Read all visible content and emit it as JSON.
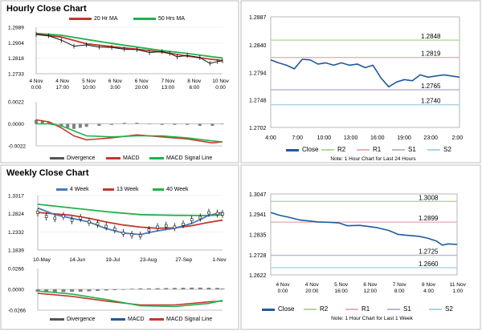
{
  "colors": {
    "green": "#22b14c",
    "red": "#c0392b",
    "black": "#111111",
    "blue": "#4a7ab8",
    "close_line": "#1f5a9a",
    "gray": "#808080",
    "r2": "#b5d69c",
    "r1": "#e6b3b3",
    "s1": "#c3b5d6",
    "s2": "#a9d4e6"
  },
  "sections": {
    "hourly_title": "Hourly Close Chart",
    "weekly_title": "Weekly Close Chart"
  },
  "chart_data": [
    {
      "id": "hourly_price",
      "type": "line",
      "legend": [
        "20 Hr MA",
        "50 Hrs MA"
      ],
      "y_ticks": [
        "1.2989",
        "1.2904",
        "1.2818",
        "1.2733"
      ],
      "ylim": [
        1.2733,
        1.2989
      ],
      "x_ticks": [
        [
          "4 Nov",
          "0:00"
        ],
        [
          "4 Nov",
          "17:00"
        ],
        [
          "5 Nov",
          "10:00"
        ],
        [
          "6 Nov",
          "3:00"
        ],
        [
          "6 Nov",
          "20:00"
        ],
        [
          "7 Nov",
          "13:00"
        ],
        [
          "8 Nov",
          "6:00"
        ],
        [
          "10 Nov",
          "0:00"
        ]
      ],
      "series": [
        {
          "name": "50 Hrs MA",
          "color": "green",
          "x": [
            0,
            1,
            2,
            3,
            4,
            5,
            6,
            7,
            7.4
          ],
          "y": [
            1.2955,
            1.2945,
            1.2922,
            1.29,
            1.288,
            1.286,
            1.2845,
            1.2826,
            1.282
          ]
        },
        {
          "name": "20 Hr MA",
          "color": "red",
          "x": [
            0,
            1,
            2,
            3,
            4,
            5,
            6,
            7,
            7.4
          ],
          "y": [
            1.295,
            1.2935,
            1.2898,
            1.2882,
            1.2868,
            1.2852,
            1.283,
            1.2812,
            1.2806
          ]
        },
        {
          "name": "Price",
          "color": "black",
          "x": [
            0,
            0.5,
            1,
            1.5,
            2,
            2.5,
            3,
            3.5,
            4,
            4.5,
            5,
            5.3,
            5.6,
            6,
            6.5,
            6.9,
            7.2,
            7.4
          ],
          "y": [
            1.295,
            1.2942,
            1.2918,
            1.2885,
            1.2892,
            1.288,
            1.2878,
            1.2868,
            1.2866,
            1.285,
            1.2855,
            1.2845,
            1.2826,
            1.2834,
            1.2822,
            1.279,
            1.28,
            1.2804
          ]
        }
      ]
    },
    {
      "id": "hourly_macd",
      "type": "line",
      "legend": [
        "Divergence",
        "MACD",
        "MACD Signal Line"
      ],
      "y_ticks": [
        "0.0022",
        "0.0000",
        "-0.0022"
      ],
      "ylim": [
        -0.0022,
        0.0022
      ],
      "series": [
        {
          "name": "MACD",
          "color": "red",
          "x": [
            0,
            0.5,
            1,
            1.5,
            2,
            3,
            4,
            5,
            6,
            7,
            7.4
          ],
          "y": [
            0.0004,
            0.0002,
            -0.0004,
            -0.0012,
            -0.0016,
            -0.0014,
            -0.0011,
            -0.0013,
            -0.0015,
            -0.0019,
            -0.0018
          ]
        },
        {
          "name": "MACD Signal Line",
          "color": "green",
          "x": [
            0,
            0.5,
            1,
            1.5,
            2,
            3,
            4,
            5,
            6,
            7,
            7.4
          ],
          "y": [
            0.0,
            0.0,
            -0.0002,
            -0.0007,
            -0.0012,
            -0.0013,
            -0.0012,
            -0.0012,
            -0.0014,
            -0.0017,
            -0.0018
          ]
        }
      ],
      "divergence": {
        "x": [
          0,
          0.25,
          0.5,
          0.75,
          1,
          1.25,
          1.5,
          1.75,
          2,
          2.5,
          3,
          3.5,
          4,
          4.5,
          5,
          5.5,
          6,
          6.5,
          7,
          7.4
        ],
        "y": [
          0.0004,
          0.0003,
          0.0002,
          0.0,
          -0.0002,
          -0.0004,
          -0.0005,
          -0.0004,
          -0.0003,
          -0.0002,
          -0.0001,
          0.0001,
          0.0001,
          0.0,
          -0.0001,
          -0.0001,
          -0.0001,
          -0.0002,
          -0.0002,
          0.0
        ]
      }
    },
    {
      "id": "hourly_24h",
      "type": "line",
      "legend": [
        "Close",
        "R2",
        "R1",
        "S1",
        "S2"
      ],
      "y_ticks": [
        "1.2887",
        "1.2840",
        "1.2794",
        "1.2748",
        "1.2702"
      ],
      "ylim": [
        1.2702,
        1.2887
      ],
      "x_ticks": [
        "4:00",
        "7:00",
        "10:00",
        "13:00",
        "16:00",
        "19:00",
        "23:00",
        "2:00"
      ],
      "levels": [
        {
          "name": "R2",
          "value": 1.2848,
          "label": "1.2848",
          "color": "r2"
        },
        {
          "name": "R1",
          "value": 1.2819,
          "label": "1.2819",
          "color": "r1"
        },
        {
          "name": "S1",
          "value": 1.2765,
          "label": "1.2765",
          "color": "s1"
        },
        {
          "name": "S2",
          "value": 1.274,
          "label": "1.2740",
          "color": "s2"
        }
      ],
      "series": [
        {
          "name": "Close",
          "color": "close_line",
          "x": [
            0,
            1,
            2,
            3,
            4,
            5,
            6,
            7,
            8,
            9,
            10,
            11,
            12,
            13,
            14,
            15,
            16,
            17,
            18,
            19,
            20,
            21,
            22,
            23,
            24
          ],
          "y": [
            1.2815,
            1.281,
            1.2806,
            1.28,
            1.2816,
            1.2815,
            1.2808,
            1.281,
            1.2806,
            1.281,
            1.2806,
            1.2808,
            1.2802,
            1.2806,
            1.2785,
            1.277,
            1.2778,
            1.2782,
            1.278,
            1.279,
            1.2786,
            1.2788,
            1.279,
            1.2788,
            1.2786
          ]
        }
      ],
      "note": "Note: 1 Hour Chart for Last 24 Hours"
    },
    {
      "id": "weekly_price",
      "type": "line",
      "legend": [
        "4 Week",
        "13 Week",
        "40 Week"
      ],
      "y_ticks": [
        "1.3317",
        "1.2824",
        "1.2332",
        "1.1839"
      ],
      "ylim": [
        1.1839,
        1.3317
      ],
      "x_ticks": [
        "10-May",
        "14-Jun",
        "19-Jul",
        "23-Aug",
        "27-Sep",
        "1-Nov"
      ],
      "series": [
        {
          "name": "40 Week",
          "color": "green",
          "x": [
            0,
            1,
            2,
            3,
            4,
            5,
            5.4
          ],
          "y": [
            1.308,
            1.298,
            1.288,
            1.28,
            1.278,
            1.2775,
            1.279
          ]
        },
        {
          "name": "13 Week",
          "color": "red",
          "x": [
            0,
            0.5,
            1,
            1.5,
            2,
            2.5,
            3,
            3.5,
            4,
            4.5,
            5,
            5.4
          ],
          "y": [
            1.286,
            1.282,
            1.278,
            1.27,
            1.26,
            1.252,
            1.246,
            1.243,
            1.244,
            1.25,
            1.259,
            1.265
          ]
        },
        {
          "name": "4 Week",
          "color": "blue",
          "x": [
            0,
            0.5,
            1,
            1.5,
            2,
            2.5,
            3,
            3.5,
            4,
            4.5,
            5,
            5.4
          ],
          "y": [
            1.298,
            1.28,
            1.27,
            1.26,
            1.242,
            1.23,
            1.226,
            1.236,
            1.243,
            1.256,
            1.278,
            1.286
          ]
        }
      ],
      "candles_close": {
        "x": [
          0,
          0.25,
          0.5,
          0.75,
          1,
          1.25,
          1.5,
          1.75,
          2,
          2.25,
          2.5,
          2.75,
          3,
          3.25,
          3.5,
          3.75,
          4,
          4.25,
          4.5,
          4.75,
          5,
          5.25,
          5.4
        ],
        "y": [
          1.286,
          1.275,
          1.27,
          1.276,
          1.265,
          1.271,
          1.26,
          1.255,
          1.248,
          1.24,
          1.23,
          1.225,
          1.223,
          1.238,
          1.246,
          1.25,
          1.246,
          1.254,
          1.266,
          1.272,
          1.285,
          1.283,
          1.282
        ]
      }
    },
    {
      "id": "weekly_macd",
      "type": "line",
      "legend": [
        "Divergence",
        "MACD",
        "MACD Signal Line"
      ],
      "y_ticks": [
        "0.0266",
        "0.0000",
        "-0.0266"
      ],
      "ylim": [
        -0.0266,
        0.0266
      ],
      "series": [
        {
          "name": "MACD",
          "color": "red",
          "x": [
            0,
            1,
            2,
            3,
            4,
            5,
            5.4
          ],
          "y": [
            -0.005,
            -0.009,
            -0.015,
            -0.02,
            -0.02,
            -0.016,
            -0.015
          ]
        },
        {
          "name": "MACD Signal Line",
          "color": "green",
          "x": [
            0,
            1,
            2,
            3,
            4,
            5,
            5.4
          ],
          "y": [
            -0.002,
            -0.006,
            -0.013,
            -0.021,
            -0.022,
            -0.018,
            -0.014
          ]
        }
      ],
      "divergence": {
        "x": [
          0,
          0.25,
          0.5,
          0.75,
          1,
          1.25,
          1.5,
          1.75,
          2,
          2.25,
          2.5,
          2.75,
          3,
          3.25,
          3.5,
          3.75,
          4,
          4.25,
          4.5,
          4.75,
          5,
          5.25,
          5.4
        ],
        "y": [
          -0.003,
          -0.004,
          -0.004,
          -0.0035,
          -0.003,
          -0.003,
          -0.0025,
          -0.002,
          -0.0015,
          -0.001,
          0.0,
          0.0008,
          0.0012,
          0.0012,
          0.0014,
          0.0016,
          0.0018,
          0.002,
          0.0022,
          0.0022,
          0.002,
          0.0018,
          0.001
        ]
      }
    },
    {
      "id": "weekly_1wk",
      "type": "line",
      "legend": [
        "Close",
        "R2",
        "R1",
        "S1",
        "S2"
      ],
      "y_ticks": [
        "1.3047",
        "1.2941",
        "1.2835",
        "1.2728",
        "1.2622"
      ],
      "ylim": [
        1.2622,
        1.3047
      ],
      "x_ticks": [
        [
          "4 Nov",
          "0:00"
        ],
        [
          "4 Nov",
          "20:00"
        ],
        [
          "5 Nov",
          "16:00"
        ],
        [
          "6 Nov",
          "12:00"
        ],
        [
          "7 Nov",
          "8:00"
        ],
        [
          "8 Nov",
          "4:00"
        ],
        [
          "11 Nov",
          "1:00"
        ]
      ],
      "levels": [
        {
          "name": "R2",
          "value": 1.3008,
          "label": "1.3008",
          "color": "r2"
        },
        {
          "name": "R1",
          "value": 1.2899,
          "label": "1.2899",
          "color": "r1"
        },
        {
          "name": "S1",
          "value": 1.2725,
          "label": "1.2725",
          "color": "s1"
        },
        {
          "name": "S2",
          "value": 1.266,
          "label": "1.2660",
          "color": "s2"
        }
      ],
      "series": [
        {
          "name": "Close",
          "color": "close_line",
          "x": [
            0,
            0.3,
            0.6,
            1,
            1.3,
            1.6,
            2,
            2.3,
            2.6,
            3,
            3.3,
            3.6,
            4,
            4.3,
            4.6,
            5,
            5.3,
            5.6,
            5.8,
            6,
            6.3
          ],
          "y": [
            1.295,
            1.2935,
            1.2925,
            1.291,
            1.2905,
            1.29,
            1.2898,
            1.2895,
            1.288,
            1.2882,
            1.2876,
            1.287,
            1.2855,
            1.2835,
            1.283,
            1.2825,
            1.2815,
            1.28,
            1.2778,
            1.2785,
            1.2782
          ]
        }
      ],
      "note": "Note: 1 Hour Chart for Last 1 Week"
    }
  ]
}
